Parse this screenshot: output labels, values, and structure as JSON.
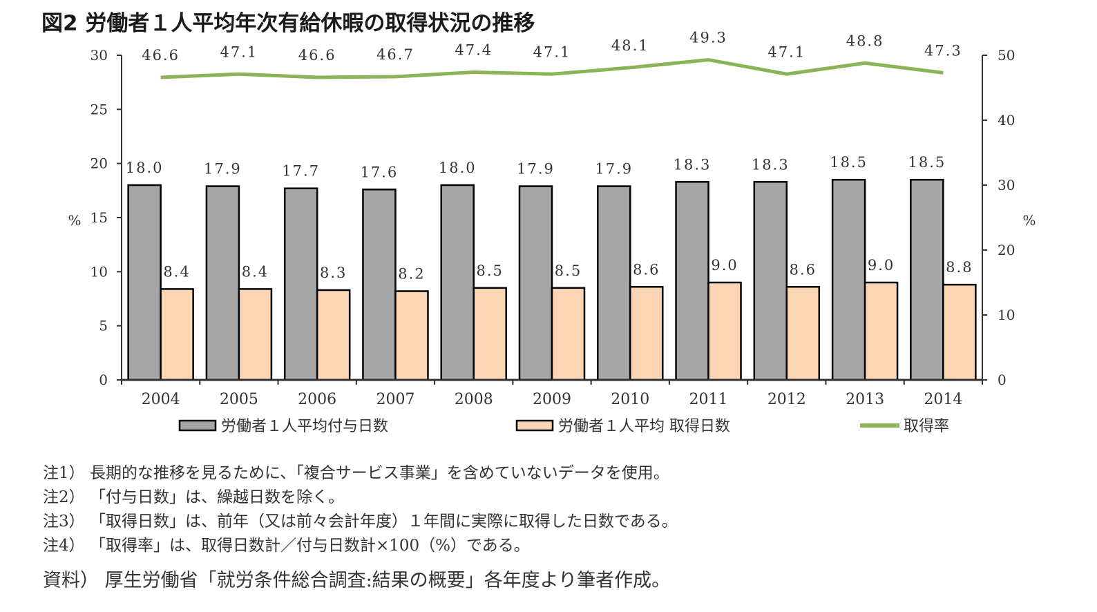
{
  "title": "図2 労働者１人平均年次有給休暇の取得状況の推移",
  "chart_data": {
    "type": "bar",
    "categories": [
      "2004",
      "2005",
      "2006",
      "2007",
      "2008",
      "2009",
      "2010",
      "2011",
      "2012",
      "2013",
      "2014"
    ],
    "series": [
      {
        "name": "労働者１人平均付与日数",
        "type": "bar",
        "axis": "left",
        "color": "#a6a6a6",
        "values": [
          18.0,
          17.9,
          17.7,
          17.6,
          18.0,
          17.9,
          17.9,
          18.3,
          18.3,
          18.5,
          18.5
        ],
        "labels": [
          "18.0",
          "17.9",
          "17.7",
          "17.6",
          "18.0",
          "17.9",
          "17.9",
          "18.3",
          "18.3",
          "18.5",
          "18.5"
        ]
      },
      {
        "name": "労働者１人平均 取得日数",
        "type": "bar",
        "axis": "left",
        "color": "#fcd5b5",
        "values": [
          8.4,
          8.4,
          8.3,
          8.2,
          8.5,
          8.5,
          8.6,
          9.0,
          8.6,
          9.0,
          8.8
        ],
        "labels": [
          "8.4",
          "8.4",
          "8.3",
          "8.2",
          "8.5",
          "8.5",
          "8.6",
          "9.0",
          "8.6",
          "9.0",
          "8.8"
        ]
      },
      {
        "name": "取得率",
        "type": "line",
        "axis": "right",
        "color": "#8cb356",
        "values": [
          46.6,
          47.1,
          46.6,
          46.7,
          47.4,
          47.1,
          48.1,
          49.3,
          47.1,
          48.8,
          47.3
        ],
        "labels": [
          "46.6",
          "47.1",
          "46.6",
          "46.7",
          "47.4",
          "47.1",
          "48.1",
          "49.3",
          "47.1",
          "48.8",
          "47.3"
        ]
      }
    ],
    "y_left": {
      "label": "%",
      "range": [
        0,
        30
      ],
      "ticks": [
        "0",
        "5",
        "10",
        "15",
        "20",
        "25",
        "30"
      ]
    },
    "y_right": {
      "label": "%",
      "range": [
        0,
        50
      ],
      "ticks": [
        "0",
        "10",
        "20",
        "30",
        "40",
        "50"
      ]
    },
    "legend_position": "bottom",
    "grid": false
  },
  "notes": [
    "注1） 長期的な推移を見るために、「複合サービス事業」を含めていないデータを使用。",
    "注2） 「付与日数」は、繰越日数を除く。",
    "注3） 「取得日数」は、前年（又は前々会計年度）１年間に実際に取得した日数である。",
    "注4） 「取得率」は、取得日数計／付与日数計×100（%）である。"
  ],
  "source": "資料） 厚生労働省「就労条件総合調査:結果の概要」各年度より筆者作成。"
}
